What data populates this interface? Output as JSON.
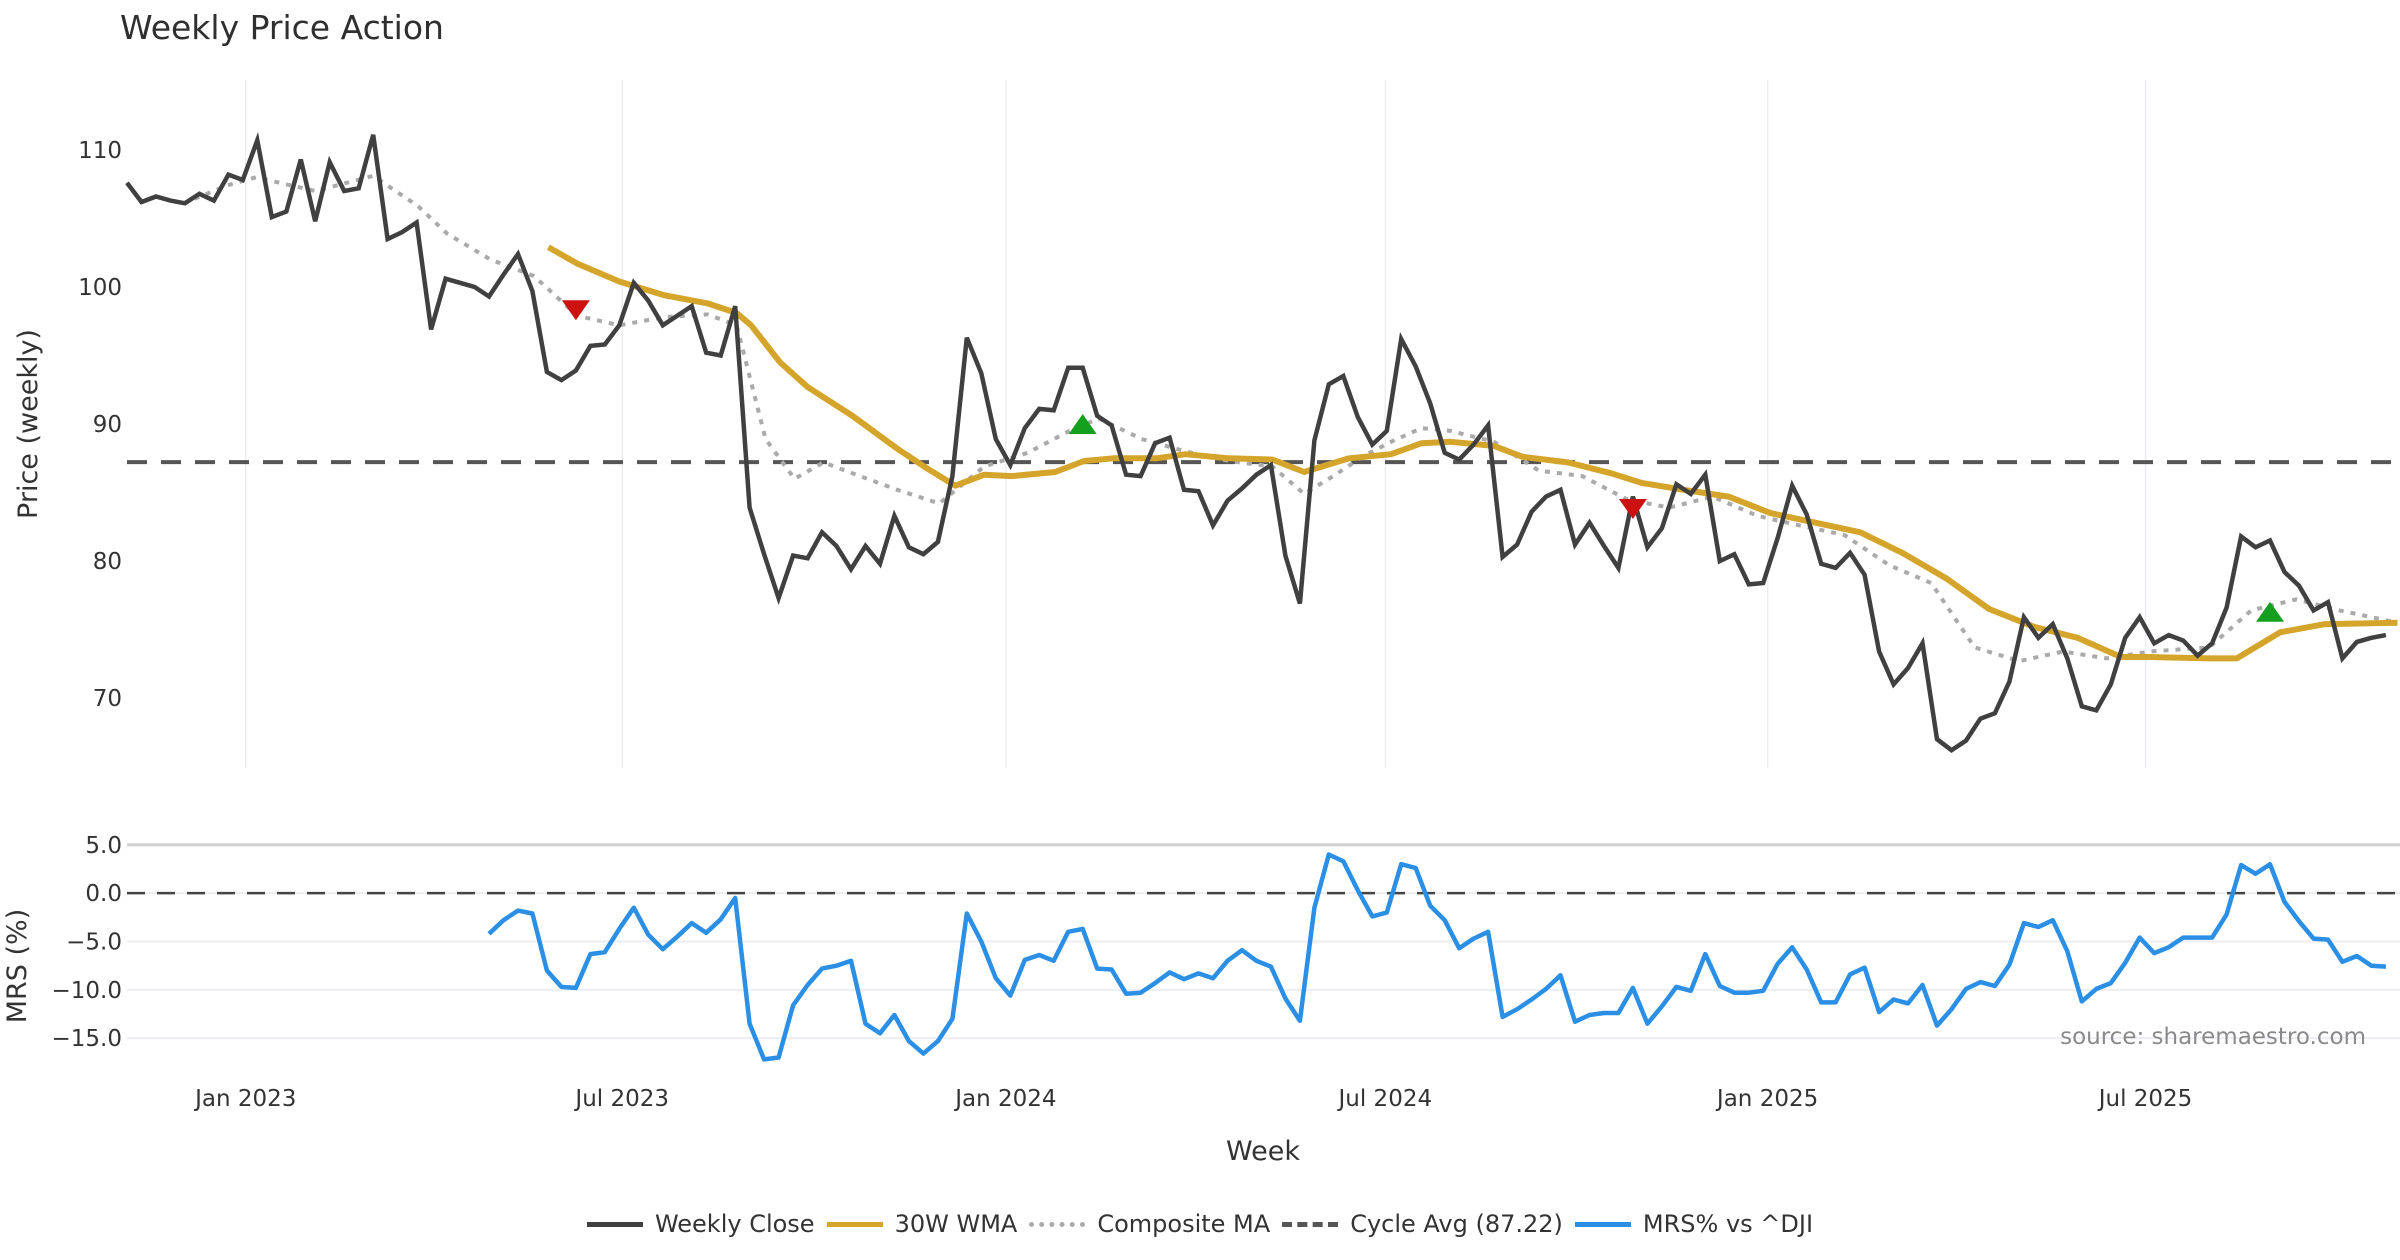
{
  "chart_data": {
    "type": "line",
    "title": "Weekly Price Action",
    "xlabel": "Week",
    "start_week_offset_to_jan_2023": -8.2,
    "x_ticks": [
      {
        "label": "Jan 2023",
        "week": 8.2
      },
      {
        "label": "Jul 2023",
        "week": 34.2
      },
      {
        "label": "Jan 2024",
        "week": 60.7
      },
      {
        "label": "Jul 2024",
        "week": 86.9
      },
      {
        "label": "Jan 2025",
        "week": 113.3
      },
      {
        "label": "Jul 2025",
        "week": 139.4
      }
    ],
    "price_panel": {
      "ylabel": "Price (weekly)",
      "ylim": [
        64.9,
        115.1
      ],
      "y_ticks": [
        70,
        80,
        90,
        100,
        110
      ],
      "y_tick_labels": [
        "70",
        "80",
        "90",
        "100",
        "110"
      ],
      "cycle_avg": 87.22,
      "weekly_close": [
        107.6,
        106.2,
        106.6,
        106.3,
        106.1,
        106.8,
        106.3,
        108.2,
        107.8,
        110.7,
        105.1,
        105.5,
        109.3,
        104.8,
        109.1,
        107.0,
        107.2,
        111.1,
        103.5,
        104.0,
        104.7,
        96.9,
        100.6,
        100.3,
        100.0,
        99.3,
        100.9,
        102.4,
        99.7,
        93.8,
        93.2,
        93.9,
        95.7,
        95.8,
        97.2,
        100.3,
        99.0,
        97.2,
        97.9,
        98.6,
        95.2,
        95.0,
        98.6,
        83.9,
        80.5,
        77.3,
        80.4,
        80.2,
        82.1,
        81.1,
        79.4,
        81.1,
        79.8,
        83.3,
        81.0,
        80.5,
        81.4,
        86.2,
        96.3,
        93.7,
        88.9,
        87.0,
        89.7,
        91.1,
        91.0,
        94.1,
        94.1,
        90.6,
        89.9,
        86.3,
        86.2,
        88.6,
        89.0,
        85.2,
        85.1,
        82.6,
        84.4,
        85.3,
        86.3,
        87.0,
        80.4,
        76.9,
        88.8,
        92.9,
        93.5,
        90.5,
        88.5,
        89.5,
        96.2,
        94.2,
        91.5,
        87.9,
        87.4,
        88.5,
        89.9,
        80.3,
        81.2,
        83.6,
        84.7,
        85.2,
        81.2,
        82.8,
        81.1,
        79.5,
        84.7,
        81.0,
        82.4,
        85.6,
        84.9,
        86.3,
        80.0,
        80.5,
        78.3,
        78.4,
        81.7,
        85.5,
        83.4,
        79.8,
        79.5,
        80.6,
        79.0,
        73.4,
        71.0,
        72.2,
        74.0,
        67.0,
        66.2,
        66.9,
        68.5,
        68.9,
        71.2,
        75.9,
        74.4,
        75.4,
        72.9,
        69.4,
        69.1,
        71.0,
        74.4,
        75.9,
        74.0,
        74.6,
        74.2,
        73.1,
        74.0,
        76.6,
        81.8,
        81.0,
        81.5,
        79.2,
        78.2,
        76.4,
        77.0,
        72.9,
        74.1,
        74.4,
        74.6
      ],
      "wma_30w_knots": [
        [
          29.1,
          102.9
        ],
        [
          31.1,
          101.7
        ],
        [
          34.0,
          100.4
        ],
        [
          37.1,
          99.4
        ],
        [
          40.1,
          98.8
        ],
        [
          42.1,
          98.1
        ],
        [
          43.1,
          97.2
        ],
        [
          45.1,
          94.5
        ],
        [
          47.0,
          92.7
        ],
        [
          50.1,
          90.6
        ],
        [
          53.2,
          88.2
        ],
        [
          55.2,
          86.8
        ],
        [
          57.2,
          85.5
        ],
        [
          59.2,
          86.3
        ],
        [
          61.1,
          86.2
        ],
        [
          64.1,
          86.5
        ],
        [
          66.1,
          87.3
        ],
        [
          68.1,
          87.5
        ],
        [
          71.1,
          87.5
        ],
        [
          73.1,
          87.8
        ],
        [
          76.1,
          87.5
        ],
        [
          79.1,
          87.4
        ],
        [
          81.3,
          86.5
        ],
        [
          84.4,
          87.5
        ],
        [
          87.3,
          87.8
        ],
        [
          89.4,
          88.6
        ],
        [
          91.4,
          88.7
        ],
        [
          94.4,
          88.4
        ],
        [
          96.4,
          87.6
        ],
        [
          99.5,
          87.2
        ],
        [
          102.5,
          86.4
        ],
        [
          104.6,
          85.7
        ],
        [
          107.5,
          85.2
        ],
        [
          110.6,
          84.7
        ],
        [
          113.5,
          83.5
        ],
        [
          116.6,
          82.8
        ],
        [
          119.7,
          82.1
        ],
        [
          122.6,
          80.6
        ],
        [
          125.7,
          78.7
        ],
        [
          128.6,
          76.5
        ],
        [
          131.7,
          75.2
        ],
        [
          134.7,
          74.4
        ],
        [
          137.7,
          73.0
        ],
        [
          139.7,
          73.0
        ],
        [
          143.8,
          72.9
        ],
        [
          145.7,
          72.9
        ],
        [
          148.7,
          74.8
        ],
        [
          151.8,
          75.4
        ],
        [
          156.8,
          75.5
        ]
      ],
      "composite_ma_knots": [
        [
          3.9,
          106.1
        ],
        [
          6.9,
          107.4
        ],
        [
          8.9,
          108.0
        ],
        [
          13.0,
          107.0
        ],
        [
          17.0,
          108.1
        ],
        [
          20.1,
          105.9
        ],
        [
          22.1,
          103.9
        ],
        [
          25.1,
          102.0
        ],
        [
          28.1,
          100.8
        ],
        [
          31.1,
          97.9
        ],
        [
          34.0,
          97.2
        ],
        [
          37.1,
          97.8
        ],
        [
          40.1,
          98.0
        ],
        [
          42.1,
          97.2
        ],
        [
          44.1,
          88.9
        ],
        [
          46.1,
          86.0
        ],
        [
          48.1,
          87.2
        ],
        [
          50.1,
          86.4
        ],
        [
          53.2,
          85.2
        ],
        [
          56.1,
          84.2
        ],
        [
          59.2,
          86.9
        ],
        [
          62.2,
          87.9
        ],
        [
          65.1,
          89.5
        ],
        [
          67.1,
          90.4
        ],
        [
          70.1,
          88.9
        ],
        [
          73.1,
          88.0
        ],
        [
          76.1,
          87.3
        ],
        [
          79.1,
          86.9
        ],
        [
          81.3,
          84.9
        ],
        [
          83.3,
          86.2
        ],
        [
          85.3,
          87.6
        ],
        [
          87.3,
          88.7
        ],
        [
          89.4,
          89.7
        ],
        [
          91.4,
          89.5
        ],
        [
          94.4,
          88.7
        ],
        [
          97.5,
          86.6
        ],
        [
          100.5,
          86.2
        ],
        [
          103.6,
          84.5
        ],
        [
          106.5,
          83.9
        ],
        [
          109.5,
          84.7
        ],
        [
          112.6,
          83.3
        ],
        [
          115.5,
          82.6
        ],
        [
          118.6,
          81.9
        ],
        [
          121.7,
          79.7
        ],
        [
          124.6,
          78.4
        ],
        [
          127.6,
          73.7
        ],
        [
          130.7,
          72.7
        ],
        [
          133.7,
          73.4
        ],
        [
          136.7,
          72.9
        ],
        [
          139.7,
          73.4
        ],
        [
          143.8,
          73.7
        ],
        [
          146.7,
          76.4
        ],
        [
          149.8,
          77.2
        ],
        [
          152.8,
          76.4
        ],
        [
          156.8,
          75.5
        ]
      ],
      "signals": [
        {
          "type": "sell",
          "week": 31,
          "value": 98.3
        },
        {
          "type": "buy",
          "week": 66,
          "value": 90.0
        },
        {
          "type": "sell",
          "week": 104,
          "value": 83.8
        },
        {
          "type": "buy",
          "week": 148,
          "value": 76.3
        }
      ]
    },
    "mrs_panel": {
      "ylabel": "MRS (%)",
      "ylim": [
        -18.5,
        5.5
      ],
      "y_ticks": [
        5,
        0,
        -5,
        -10,
        -15
      ],
      "y_tick_labels": [
        "5.0",
        "0.0",
        "−5.0",
        "−10.0",
        "−15.0"
      ],
      "zero_line": 0,
      "start_week": 25,
      "values": [
        -4.2,
        -2.8,
        -1.8,
        -2.1,
        -8.0,
        -9.7,
        -9.8,
        -6.3,
        -6.1,
        -3.7,
        -1.5,
        -4.3,
        -5.8,
        -4.5,
        -3.1,
        -4.1,
        -2.7,
        -0.5,
        -13.5,
        -17.2,
        -17.0,
        -11.6,
        -9.5,
        -7.8,
        -7.5,
        -7.0,
        -13.5,
        -14.5,
        -12.6,
        -15.3,
        -16.6,
        -15.3,
        -13.0,
        -2.1,
        -5.0,
        -8.8,
        -10.6,
        -6.9,
        -6.4,
        -7.0,
        -4.0,
        -3.7,
        -7.8,
        -7.9,
        -10.4,
        -10.3,
        -9.3,
        -8.2,
        -8.9,
        -8.3,
        -8.8,
        -7.0,
        -5.9,
        -7.0,
        -7.6,
        -10.9,
        -13.2,
        -1.5,
        4.0,
        3.3,
        0.3,
        -2.4,
        -2.0,
        3.0,
        2.6,
        -1.3,
        -2.8,
        -5.7,
        -4.7,
        -4.0,
        -12.8,
        -12.0,
        -11.0,
        -9.9,
        -8.5,
        -13.3,
        -12.6,
        -12.4,
        -12.4,
        -9.8,
        -13.5,
        -11.7,
        -9.7,
        -10.1,
        -6.3,
        -9.6,
        -10.3,
        -10.3,
        -10.1,
        -7.3,
        -5.6,
        -7.9,
        -11.3,
        -11.3,
        -8.4,
        -7.7,
        -12.3,
        -11.0,
        -11.4,
        -9.5,
        -13.7,
        -12.0,
        -9.9,
        -9.2,
        -9.6,
        -7.4,
        -3.1,
        -3.5,
        -2.8,
        -6.0,
        -11.2,
        -9.9,
        -9.3,
        -7.2,
        -4.6,
        -6.2,
        -5.6,
        -4.6,
        -4.6,
        -4.6,
        -2.2,
        2.9,
        2.0,
        3.0,
        -0.9,
        -2.9,
        -4.7,
        -4.8,
        -7.1,
        -6.5,
        -7.5,
        -7.6
      ],
      "source_note": "source: sharemaestro.com"
    },
    "legend": {
      "placement": "bottom-center",
      "items": [
        {
          "label": "Weekly Close",
          "color": "#404040",
          "style": "solid"
        },
        {
          "label": "30W WMA",
          "color": "#d4a52a",
          "style": "solid"
        },
        {
          "label": "Composite MA",
          "color": "#aaaaaa",
          "style": "dotted"
        },
        {
          "label": "Cycle Avg (87.22)",
          "color": "#555555",
          "style": "dashed"
        },
        {
          "label": "MRS% vs ^DJI",
          "color": "#2b8fe6",
          "style": "solid"
        }
      ]
    },
    "colors": {
      "close": "#404040",
      "wma": "#d4a52a",
      "composite": "#aaaaaa",
      "cycle": "#555555",
      "mrs": "#2b8fe6",
      "buy": "#14a01e",
      "sell": "#cc1111",
      "grid": "#eceef2"
    }
  }
}
